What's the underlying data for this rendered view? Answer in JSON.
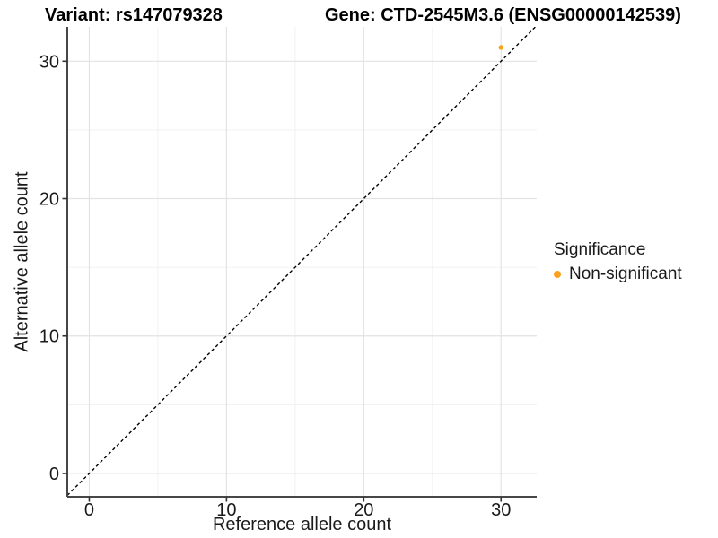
{
  "chart_data": {
    "type": "scatter",
    "titles": {
      "left": "Variant: rs147079328",
      "right": "Gene: CTD-2545M3.6 (ENSG00000142539)"
    },
    "xlabel": "Reference allele count",
    "ylabel": "Alternative allele count",
    "xlim": [
      -1.6,
      32.6
    ],
    "ylim": [
      -1.7,
      32.5
    ],
    "xticks": [
      0,
      10,
      20,
      30
    ],
    "yticks": [
      0,
      10,
      20,
      30
    ],
    "x_minor_gridlines": [
      5,
      15,
      25
    ],
    "y_minor_gridlines": [
      5,
      15,
      25
    ],
    "grid": "major and minor, light gray on white panel",
    "reference_line": {
      "type": "identity (y = x)",
      "style": "dashed",
      "color": "#000000"
    },
    "series": [
      {
        "name": "Non-significant",
        "color": "#FAA21E",
        "points": [
          {
            "x": 30,
            "y": 31
          }
        ]
      }
    ],
    "legend": {
      "title": "Significance",
      "position": "right",
      "items": [
        {
          "label": "Non-significant",
          "color": "#FAA21E"
        }
      ]
    }
  },
  "colors": {
    "background": "#FFFFFF",
    "grid_major": "#E3E3E3",
    "grid_minor": "#F1F1F1",
    "axis_line": "#474747",
    "tick": "#333333",
    "text": "#1A1A1A",
    "title": "#000000"
  }
}
